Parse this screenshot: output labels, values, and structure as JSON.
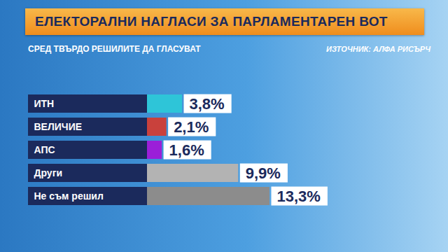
{
  "chart_data": {
    "type": "bar",
    "title": "ЕЛЕКТОРАЛНИ НАГЛАСИ ЗА ПАРЛАМЕНТАРЕН ВОТ",
    "subtitle": "СРЕД ТВЪРДО РЕШИЛИТЕ ДА ГЛАСУВАТ",
    "source": "ИЗТОЧНИК: АЛФА РИСЪРЧ",
    "orientation": "horizontal",
    "categories": [
      "ИТН",
      "ВЕЛИЧИЕ",
      "АПС",
      "Други",
      "Не съм решил"
    ],
    "values": [
      3.8,
      2.1,
      1.6,
      9.9,
      13.3
    ],
    "value_labels": [
      "3,8%",
      "2,1%",
      "1,6%",
      "9,9%",
      "13,3%"
    ],
    "colors": [
      "#2ec5d8",
      "#c9413c",
      "#9b1fd8",
      "#b3b3b3",
      "#8c8c8c"
    ],
    "data_labels": true,
    "tick_labels": "y",
    "grid": false
  }
}
